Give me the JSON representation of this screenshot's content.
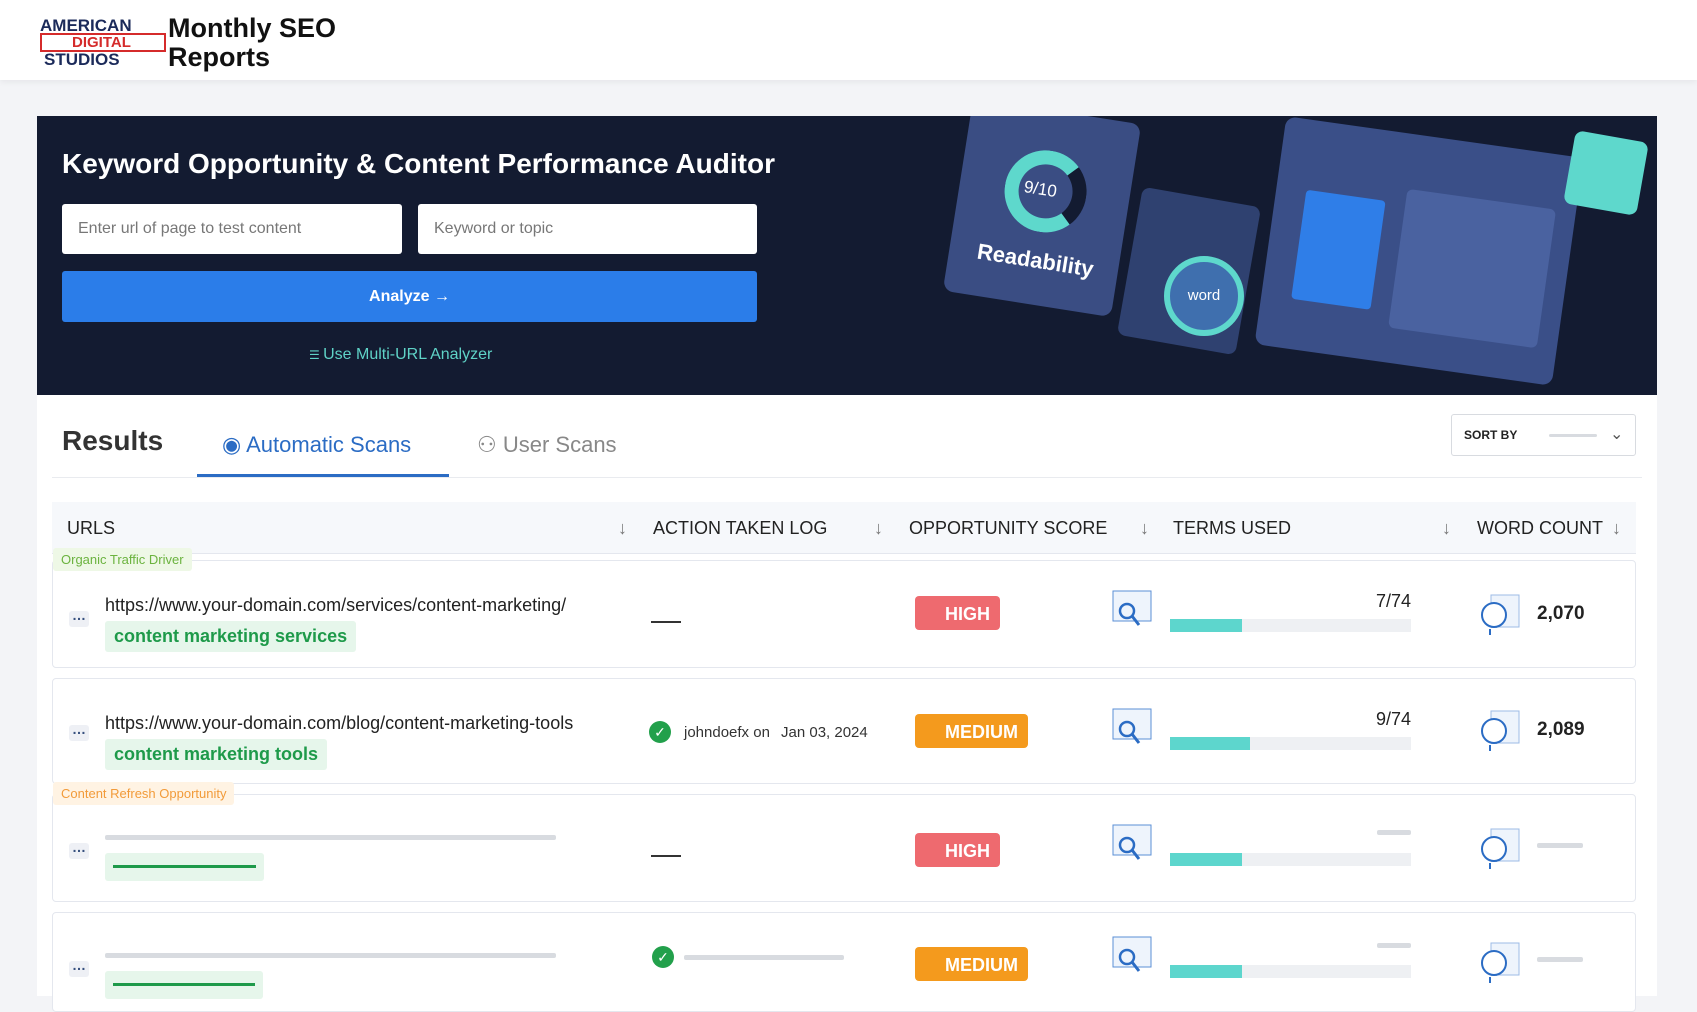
{
  "header": {
    "logo": [
      "AMERICAN",
      "DIGITAL",
      "STUDIOS"
    ],
    "title": "Monthly SEO Reports"
  },
  "hero": {
    "title": "Keyword Opportunity & Content Performance Auditor",
    "url_placeholder": "Enter url of page to test content",
    "keyword_placeholder": "Keyword or topic",
    "button": "Analyze →",
    "link": "Use Multi-URL Analyzer",
    "illustration": {
      "score": "9/10",
      "label": "Readability",
      "lens": "word"
    }
  },
  "results": {
    "title": "Results",
    "tabs": [
      "Automatic Scans",
      "User Scans"
    ],
    "sort_label": "SORT BY"
  },
  "table": {
    "columns": [
      "URLS",
      "ACTION TAKEN LOG",
      "OPPORTUNITY SCORE",
      "TERMS USED",
      "WORD COUNT"
    ],
    "rows": [
      {
        "tag": "Organic Traffic Driver",
        "url": "https://www.your-domain.com/services/content-marketing/",
        "keyword": "content marketing services",
        "score": "HIGH",
        "terms": "7/74",
        "word_count": "2,070"
      },
      {
        "url": "https://www.your-domain.com/blog/content-marketing-tools",
        "keyword": "content marketing tools",
        "action": {
          "user": "johndoefx on",
          "date": "Jan 03, 2024"
        },
        "score": "MEDIUM",
        "terms": "9/74",
        "word_count": "2,089"
      },
      {
        "tag": "Content Refresh Opportunity",
        "score": "HIGH"
      },
      {
        "score": "MEDIUM"
      }
    ]
  }
}
